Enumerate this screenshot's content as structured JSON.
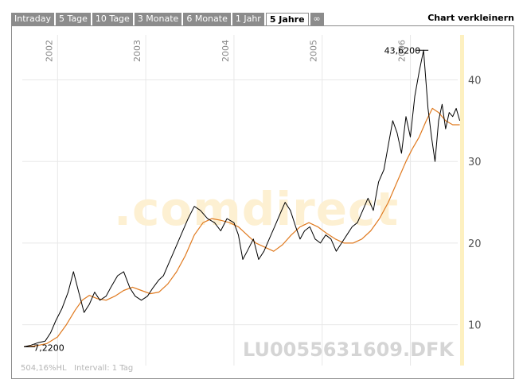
{
  "tabs": [
    {
      "label": "Intraday",
      "active": false
    },
    {
      "label": "5 Tage",
      "active": false
    },
    {
      "label": "10 Tage",
      "active": false
    },
    {
      "label": "3 Monate",
      "active": false
    },
    {
      "label": "6 Monate",
      "active": false
    },
    {
      "label": "1 Jahr",
      "active": false
    },
    {
      "label": "5 Jahre",
      "active": true
    },
    {
      "label": "∞",
      "active": false
    }
  ],
  "shrink_label": "Chart verkleinern",
  "watermark": ".comdirect",
  "isin_label": "LU0055631609.DFK",
  "footer": {
    "change": "504,16%HL",
    "interval": "Intervall: 1 Tag"
  },
  "colors": {
    "price": "#000000",
    "average": "#e07a1f",
    "grid": "#e8e8e8",
    "highlight": "#fdf0c0",
    "watermark": "#fdf0d2",
    "tab": "#8c8c8c"
  },
  "chart_data": {
    "type": "line",
    "x_tick_labels": [
      "2002",
      "2003",
      "2004",
      "2005",
      "2006"
    ],
    "x_ticks": [
      2002.0,
      2003.0,
      2004.0,
      2005.0,
      2006.0
    ],
    "xlim": [
      2001.6,
      2006.6
    ],
    "ylim": [
      5.0,
      45.5
    ],
    "y_ticks": [
      10,
      20,
      30,
      40
    ],
    "y_axis_side": "right",
    "grid": true,
    "max_label": "43,6200",
    "min_label": "7,2200",
    "series": [
      {
        "role": "price",
        "x": [
          2001.62,
          2001.7,
          2001.78,
          2001.86,
          2001.92,
          2001.98,
          2002.05,
          2002.12,
          2002.18,
          2002.24,
          2002.3,
          2002.36,
          2002.42,
          2002.48,
          2002.55,
          2002.6,
          2002.68,
          2002.75,
          2002.82,
          2002.88,
          2002.95,
          2003.02,
          2003.08,
          2003.15,
          2003.2,
          2003.26,
          2003.32,
          2003.4,
          2003.48,
          2003.55,
          2003.62,
          2003.7,
          2003.78,
          2003.85,
          2003.92,
          2004.0,
          2004.05,
          2004.1,
          2004.15,
          2004.22,
          2004.28,
          2004.34,
          2004.4,
          2004.46,
          2004.52,
          2004.58,
          2004.64,
          2004.7,
          2004.75,
          2004.8,
          2004.86,
          2004.92,
          2004.98,
          2005.04,
          2005.1,
          2005.16,
          2005.22,
          2005.28,
          2005.34,
          2005.4,
          2005.46,
          2005.52,
          2005.58,
          2005.64,
          2005.7,
          2005.75,
          2005.8,
          2005.85,
          2005.9,
          2005.95,
          2006.0,
          2006.05,
          2006.1,
          2006.15,
          2006.2,
          2006.24,
          2006.28,
          2006.32,
          2006.36,
          2006.4,
          2006.44,
          2006.48,
          2006.52,
          2006.56
        ],
        "y": [
          7.3,
          7.5,
          7.8,
          8.0,
          9.0,
          10.5,
          12.0,
          14.0,
          16.5,
          14.0,
          11.5,
          12.5,
          14.0,
          13.0,
          13.5,
          14.5,
          16.0,
          16.5,
          14.5,
          13.5,
          13.0,
          13.5,
          14.5,
          15.5,
          16.0,
          17.5,
          19.0,
          21.0,
          23.0,
          24.5,
          24.0,
          23.0,
          22.5,
          21.5,
          23.0,
          22.5,
          21.0,
          18.0,
          19.0,
          20.5,
          18.0,
          19.0,
          20.5,
          22.0,
          23.5,
          25.0,
          24.0,
          22.0,
          20.5,
          21.5,
          22.0,
          20.5,
          20.0,
          21.0,
          20.5,
          19.0,
          20.0,
          21.0,
          22.0,
          22.5,
          24.0,
          25.5,
          24.0,
          27.5,
          29.0,
          32.0,
          35.0,
          33.5,
          31.0,
          35.5,
          33.0,
          38.0,
          41.0,
          43.62,
          36.5,
          33.0,
          30.0,
          35.0,
          37.0,
          34.0,
          36.0,
          35.5,
          36.5,
          35.0
        ]
      },
      {
        "role": "average",
        "x": [
          2001.62,
          2001.75,
          2001.88,
          2002.0,
          2002.1,
          2002.2,
          2002.28,
          2002.36,
          2002.45,
          2002.55,
          2002.65,
          2002.75,
          2002.85,
          2002.95,
          2003.05,
          2003.15,
          2003.25,
          2003.35,
          2003.45,
          2003.55,
          2003.65,
          2003.75,
          2003.85,
          2003.95,
          2004.05,
          2004.15,
          2004.25,
          2004.35,
          2004.45,
          2004.55,
          2004.65,
          2004.75,
          2004.85,
          2004.95,
          2005.05,
          2005.15,
          2005.25,
          2005.35,
          2005.45,
          2005.55,
          2005.65,
          2005.75,
          2005.85,
          2005.95,
          2006.02,
          2006.1,
          2006.18,
          2006.25,
          2006.32,
          2006.4,
          2006.48,
          2006.56
        ],
        "y": [
          7.3,
          7.4,
          7.7,
          8.5,
          10.0,
          11.8,
          13.0,
          13.6,
          13.2,
          13.0,
          13.5,
          14.2,
          14.6,
          14.2,
          13.8,
          14.0,
          15.0,
          16.5,
          18.5,
          21.0,
          22.5,
          23.0,
          22.8,
          22.5,
          22.0,
          21.0,
          20.0,
          19.5,
          19.0,
          19.8,
          21.0,
          22.0,
          22.5,
          22.0,
          21.2,
          20.5,
          20.0,
          20.0,
          20.5,
          21.5,
          23.0,
          25.0,
          27.5,
          30.0,
          31.5,
          33.0,
          35.0,
          36.5,
          36.0,
          35.0,
          34.5,
          34.5
        ]
      }
    ]
  }
}
